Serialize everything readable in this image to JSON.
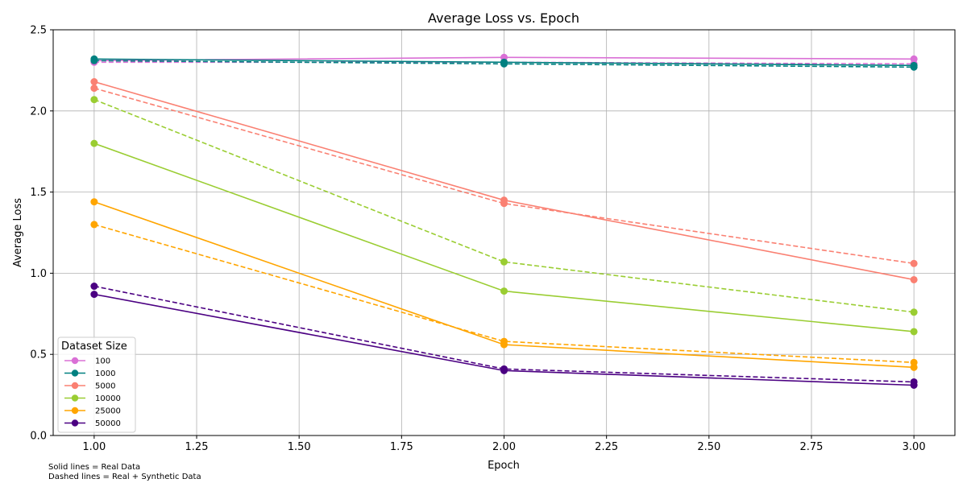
{
  "chart_data": {
    "type": "line",
    "title": "Average Loss vs. Epoch",
    "xlabel": "Epoch",
    "ylabel": "Average Loss",
    "xlim": [
      0.9,
      3.1
    ],
    "ylim": [
      0.0,
      2.5
    ],
    "x_ticks": [
      "1.00",
      "1.25",
      "1.50",
      "1.75",
      "2.00",
      "2.25",
      "2.50",
      "2.75",
      "3.00"
    ],
    "y_ticks": [
      "0.0",
      "0.5",
      "1.0",
      "1.5",
      "2.0",
      "2.5"
    ],
    "grid": true,
    "legend": {
      "title": "Dataset Size",
      "position": "lower-left",
      "entries": [
        "100",
        "1000",
        "5000",
        "10000",
        "25000",
        "50000"
      ]
    },
    "x": [
      1,
      2,
      3
    ],
    "series": [
      {
        "name": "100",
        "color": "#da70d6",
        "real": [
          2.31,
          2.33,
          2.32
        ],
        "synthetic": [
          2.3,
          2.3,
          2.29
        ]
      },
      {
        "name": "1000",
        "color": "#008080",
        "real": [
          2.32,
          2.3,
          2.28
        ],
        "synthetic": [
          2.31,
          2.29,
          2.27
        ]
      },
      {
        "name": "5000",
        "color": "#fa8072",
        "real": [
          2.18,
          1.45,
          0.96
        ],
        "synthetic": [
          2.14,
          1.43,
          1.06
        ]
      },
      {
        "name": "10000",
        "color": "#9acd32",
        "real": [
          1.8,
          0.89,
          0.64
        ],
        "synthetic": [
          2.07,
          1.07,
          0.76
        ]
      },
      {
        "name": "25000",
        "color": "#ffa500",
        "real": [
          1.44,
          0.56,
          0.42
        ],
        "synthetic": [
          1.3,
          0.58,
          0.45
        ]
      },
      {
        "name": "50000",
        "color": "#4b0082",
        "real": [
          0.87,
          0.4,
          0.31
        ],
        "synthetic": [
          0.92,
          0.41,
          0.33
        ]
      }
    ],
    "footnotes": [
      "Solid lines = Real Data",
      "Dashed lines = Real + Synthetic Data"
    ]
  }
}
